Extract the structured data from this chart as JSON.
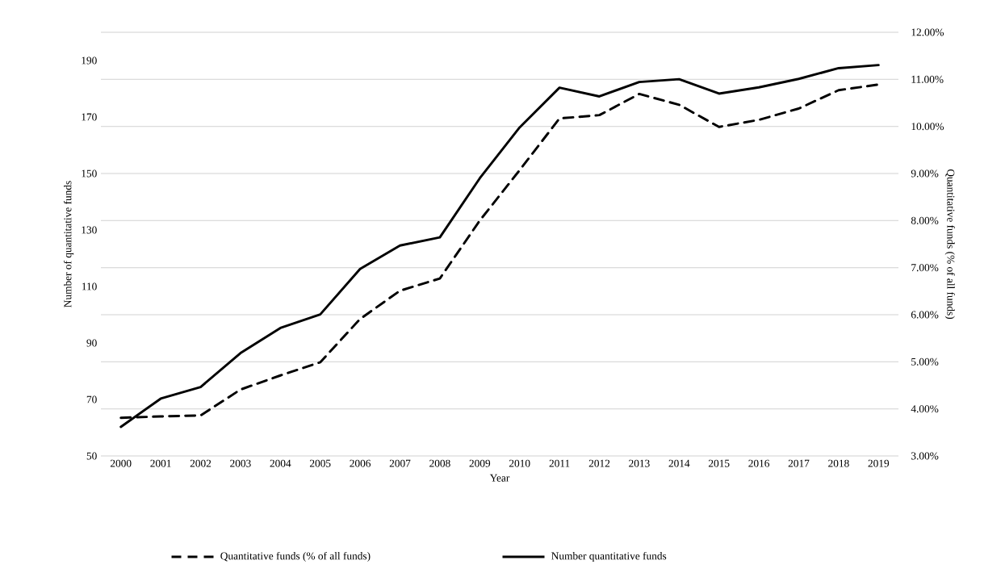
{
  "chart_data": {
    "type": "line",
    "xlabel": "Year",
    "ylabel": "Number of quantitative funds",
    "y2label": "Quantitative funds (% of all funds)",
    "categories": [
      "2000",
      "2001",
      "2002",
      "2003",
      "2004",
      "2005",
      "2006",
      "2007",
      "2008",
      "2009",
      "2010",
      "2011",
      "2012",
      "2013",
      "2014",
      "2015",
      "2016",
      "2017",
      "2018",
      "2019"
    ],
    "series": [
      {
        "name": "Quantitative funds (% of all funds)",
        "color": "#000000",
        "axis": "y2",
        "line_style": "dashed",
        "values": [
          3.81,
          3.84,
          3.86,
          4.41,
          4.71,
          4.99,
          5.91,
          6.51,
          6.77,
          8.0,
          9.07,
          10.17,
          10.24,
          10.69,
          10.46,
          9.99,
          10.14,
          10.38,
          10.77,
          10.89
        ]
      },
      {
        "name": "Number quantitative funds",
        "color": "#000000",
        "line_style": "solid",
        "values": [
          60.3,
          70.3,
          74.4,
          86.4,
          95.3,
          100.1,
          116.2,
          124.5,
          127.4,
          148.3,
          166.3,
          180.4,
          177.3,
          182.4,
          183.4,
          178.3,
          180.5,
          183.5,
          187.3,
          188.4
        ]
      }
    ],
    "ylim": [
      50,
      200
    ],
    "yticks": [
      50,
      70,
      90,
      110,
      130,
      150,
      170,
      190
    ],
    "y2lim": [
      3,
      12
    ],
    "y2ticks": [
      {
        "value": 3,
        "label": "3.00%"
      },
      {
        "value": 4,
        "label": "4.00%"
      },
      {
        "value": 5,
        "label": "5.00%"
      },
      {
        "value": 6,
        "label": "6.00%"
      },
      {
        "value": 7,
        "label": "7.00%"
      },
      {
        "value": 8,
        "label": "8.00%"
      },
      {
        "value": 9,
        "label": "9.00%"
      },
      {
        "value": 10,
        "label": "10.00%"
      },
      {
        "value": 11,
        "label": "11.00%"
      },
      {
        "value": 12,
        "label": "12.00%"
      }
    ],
    "grid": "y2",
    "legend": "bottom"
  }
}
